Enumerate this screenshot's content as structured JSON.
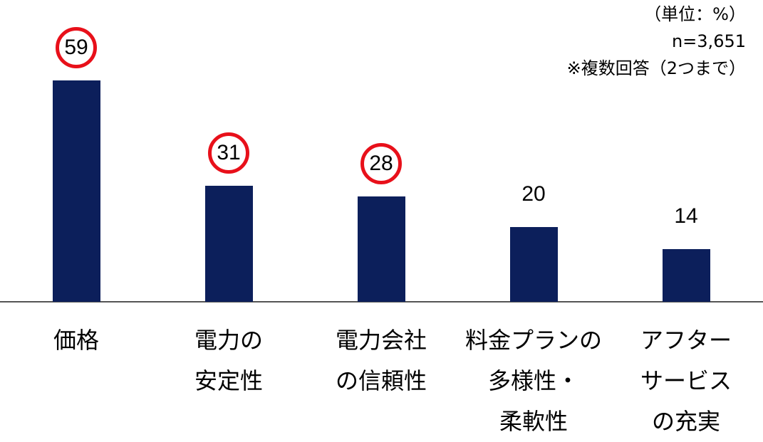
{
  "chart_data": {
    "type": "bar",
    "annotations": [
      "（単位：%）",
      "n=3,651",
      "※複数回答（2つまで）"
    ],
    "categories": [
      "価格",
      "電力の\n安定性",
      "電力会社\nの信頼性",
      "料金プランの\n多様性・\n柔軟性",
      "アフター\nサービス\nの充実"
    ],
    "values": [
      59,
      31,
      28,
      20,
      14
    ],
    "color": "#0c1f5b",
    "highlight": [
      0,
      1,
      2
    ],
    "highlight_color": "#e8101a"
  }
}
